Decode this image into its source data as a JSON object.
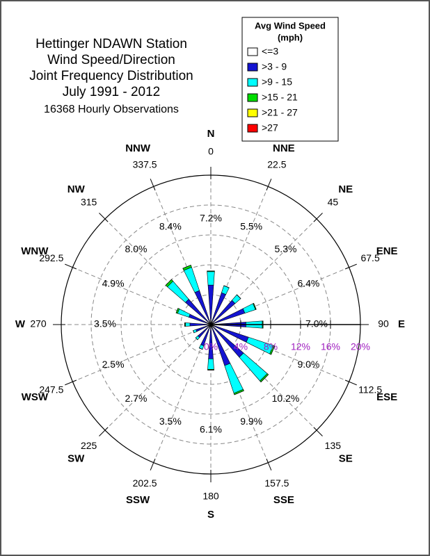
{
  "chart_data": {
    "type": "windrose",
    "title": [
      "Hettinger NDAWN Station",
      "Wind Speed/Direction",
      "Joint Frequency Distribution",
      "July 1991 - 2012"
    ],
    "subtitle": "16368 Hourly Observations",
    "legend_title": [
      "Avg Wind Speed",
      "(mph)"
    ],
    "legend_position": "top-right",
    "categories": [
      "N",
      "NNE",
      "NE",
      "ENE",
      "E",
      "ESE",
      "SE",
      "SSE",
      "S",
      "SSW",
      "SW",
      "WSW",
      "W",
      "WNW",
      "NW",
      "NNW"
    ],
    "angles": [
      0,
      22.5,
      45,
      67.5,
      90,
      112.5,
      135,
      157.5,
      180,
      202.5,
      225,
      247.5,
      270,
      292.5,
      315,
      337.5
    ],
    "direction_labels": [
      "7.2%",
      "5.5%",
      "5.3%",
      "6.4%",
      "7.0%",
      "9.0%",
      "10.2%",
      "9.9%",
      "6.1%",
      "3.5%",
      "2.7%",
      "2.5%",
      "3.5%",
      "4.9%",
      "8.0%",
      "8.4%"
    ],
    "series": [
      {
        "name": "<=3",
        "color": "#ffffff",
        "values": [
          0.3,
          0.3,
          0.3,
          0.3,
          0.3,
          0.3,
          0.3,
          0.3,
          0.3,
          0.3,
          0.3,
          0.3,
          0.3,
          0.3,
          0.3,
          0.3
        ]
      },
      {
        "name": ">3 - 9",
        "color": "#1414d2",
        "values": [
          5.0,
          4.2,
          4.0,
          4.5,
          4.4,
          5.0,
          5.5,
          5.5,
          4.3,
          2.7,
          2.0,
          1.8,
          2.5,
          2.8,
          4.2,
          4.5
        ]
      },
      {
        "name": ">9 - 15",
        "color": "#00ffff",
        "values": [
          1.8,
          1.0,
          1.0,
          1.5,
          2.2,
          3.5,
          4.2,
          3.9,
          1.4,
          0.5,
          0.4,
          0.4,
          0.6,
          1.6,
          3.2,
          3.3
        ]
      },
      {
        "name": ">15 - 21",
        "color": "#00dd00",
        "values": [
          0.1,
          0,
          0,
          0.1,
          0.1,
          0.2,
          0.2,
          0.2,
          0.1,
          0,
          0,
          0,
          0.1,
          0.2,
          0.3,
          0.3
        ]
      },
      {
        "name": ">21 - 27",
        "color": "#ffff00",
        "values": [
          0,
          0,
          0,
          0,
          0,
          0,
          0,
          0,
          0,
          0,
          0,
          0,
          0,
          0,
          0,
          0
        ]
      },
      {
        "name": ">27",
        "color": "#ff0000",
        "values": [
          0,
          0,
          0,
          0,
          0,
          0,
          0,
          0,
          0,
          0,
          0,
          0,
          0,
          0,
          0,
          0
        ]
      }
    ],
    "rlim": [
      0,
      20
    ],
    "rticks": [
      {
        "value": 0,
        "label": "0%"
      },
      {
        "value": 4,
        "label": "4%"
      },
      {
        "value": 8,
        "label": "8%"
      },
      {
        "value": 12,
        "label": "12%"
      },
      {
        "value": 16,
        "label": "16%"
      },
      {
        "value": 20,
        "label": "20%"
      }
    ],
    "grid": true
  }
}
